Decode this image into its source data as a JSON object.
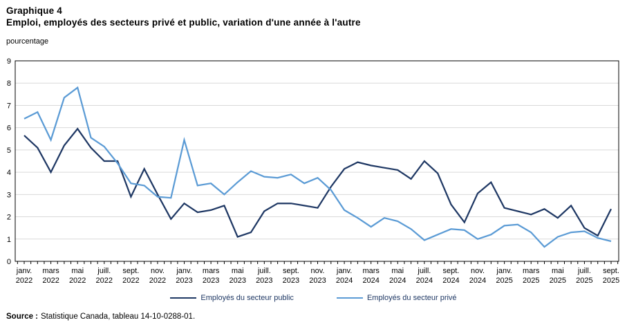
{
  "header": {
    "chart_number": "Graphique 4",
    "title": "Emploi, employés des secteurs privé et public, variation d'une année à l'autre",
    "unit_label": "pourcentage"
  },
  "chart_data": {
    "type": "line",
    "title": "Emploi, employés des secteurs privé et public, variation d'une année à l'autre",
    "ylabel": "pourcentage",
    "ylim": [
      0,
      9
    ],
    "y_ticks": [
      0,
      1,
      2,
      3,
      4,
      5,
      6,
      7,
      8,
      9
    ],
    "grid": true,
    "grid_color": "#d9d9d9",
    "axis_color": "#000000",
    "legend_position": "bottom",
    "x_label_every": 2,
    "x_tick_labels": [
      {
        "m": "janv.",
        "y": "2022"
      },
      {
        "m": "mars",
        "y": "2022"
      },
      {
        "m": "mai",
        "y": "2022"
      },
      {
        "m": "juill.",
        "y": "2022"
      },
      {
        "m": "sept.",
        "y": "2022"
      },
      {
        "m": "nov.",
        "y": "2022"
      },
      {
        "m": "janv.",
        "y": "2023"
      },
      {
        "m": "mars",
        "y": "2023"
      },
      {
        "m": "mai",
        "y": "2023"
      },
      {
        "m": "juill.",
        "y": "2023"
      },
      {
        "m": "sept.",
        "y": "2023"
      },
      {
        "m": "nov.",
        "y": "2023"
      },
      {
        "m": "janv.",
        "y": "2024"
      },
      {
        "m": "mars",
        "y": "2024"
      },
      {
        "m": "mai",
        "y": "2024"
      },
      {
        "m": "juill.",
        "y": "2024"
      },
      {
        "m": "sept.",
        "y": "2024"
      },
      {
        "m": "nov.",
        "y": "2024"
      },
      {
        "m": "janv.",
        "y": "2025"
      },
      {
        "m": "mars",
        "y": "2025"
      },
      {
        "m": "mai",
        "y": "2025"
      },
      {
        "m": "juill.",
        "y": "2025"
      },
      {
        "m": "sept.",
        "y": "2025"
      }
    ],
    "series": [
      {
        "name": "Employés du secteur public",
        "color": "#1f3864",
        "values": [
          5.65,
          5.1,
          4.0,
          5.2,
          5.95,
          5.1,
          4.5,
          4.5,
          2.9,
          4.15,
          3.0,
          1.9,
          2.6,
          2.2,
          2.3,
          2.5,
          1.1,
          1.3,
          2.25,
          2.6,
          2.6,
          2.5,
          2.4,
          3.35,
          4.15,
          4.45,
          4.3,
          4.2,
          4.1,
          3.7,
          4.5,
          3.95,
          2.55,
          1.75,
          3.05,
          3.55,
          2.4,
          2.25,
          2.1,
          2.35,
          1.95,
          2.5,
          1.5,
          1.15,
          2.35
        ]
      },
      {
        "name": "Employés du secteur privé",
        "color": "#5b9bd5",
        "values": [
          6.4,
          6.7,
          5.45,
          7.35,
          7.8,
          5.55,
          5.15,
          4.4,
          3.5,
          3.4,
          2.9,
          2.85,
          5.45,
          3.4,
          3.5,
          3.0,
          3.55,
          4.05,
          3.8,
          3.75,
          3.9,
          3.5,
          3.75,
          3.2,
          2.3,
          1.95,
          1.55,
          1.95,
          1.8,
          1.45,
          0.95,
          1.2,
          1.45,
          1.4,
          1.0,
          1.2,
          1.6,
          1.65,
          1.3,
          0.65,
          1.1,
          1.3,
          1.35,
          1.05,
          0.9
        ]
      }
    ]
  },
  "source": {
    "prefix": "Source :",
    "text": "Statistique Canada, tableau 14-10-0288-01."
  }
}
